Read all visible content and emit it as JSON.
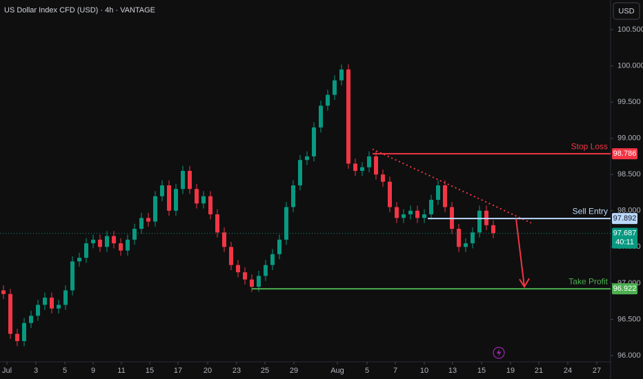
{
  "chart_data": {
    "type": "candlestick",
    "title": "US Dollar Index CFD (USD) · 4h · VANTAGE",
    "currency_button": "USD",
    "up_color": "#089981",
    "down_color": "#f23645",
    "grid": false,
    "xlim": [
      -0.5,
      88
    ],
    "ylim": [
      95.92,
      100.87
    ],
    "yticks": [
      {
        "value": 96,
        "label": "96.000"
      },
      {
        "value": 96.5,
        "label": "96.500"
      },
      {
        "value": 97,
        "label": "97.000"
      },
      {
        "value": 97.5,
        "label": "97.500"
      },
      {
        "value": 98,
        "label": "98.000"
      },
      {
        "value": 98.5,
        "label": "98.500"
      },
      {
        "value": 99,
        "label": "99.000"
      },
      {
        "value": 99.5,
        "label": "99.500"
      },
      {
        "value": 100,
        "label": "100.000"
      },
      {
        "value": 100.5,
        "label": "100.500"
      }
    ],
    "xticks": [
      {
        "value": 0.5,
        "label": "Jul"
      },
      {
        "value": 4.7,
        "label": "3"
      },
      {
        "value": 8.9,
        "label": "5"
      },
      {
        "value": 13,
        "label": "9"
      },
      {
        "value": 17.1,
        "label": "11"
      },
      {
        "value": 21.2,
        "label": "15"
      },
      {
        "value": 25.3,
        "label": "17"
      },
      {
        "value": 29.6,
        "label": "20"
      },
      {
        "value": 33.8,
        "label": "23"
      },
      {
        "value": 37.9,
        "label": "25"
      },
      {
        "value": 42.1,
        "label": "29"
      },
      {
        "value": 48.4,
        "label": "Aug"
      },
      {
        "value": 52.7,
        "label": "5"
      },
      {
        "value": 56.8,
        "label": "7"
      },
      {
        "value": 61,
        "label": "10"
      },
      {
        "value": 65.1,
        "label": "13"
      },
      {
        "value": 69.3,
        "label": "15"
      },
      {
        "value": 73.5,
        "label": "19"
      },
      {
        "value": 77.6,
        "label": "21"
      },
      {
        "value": 81.8,
        "label": "24"
      },
      {
        "value": 86,
        "label": "27"
      }
    ],
    "series": [
      {
        "name": "US Dollar Index CFD",
        "x": [
          0,
          1,
          2,
          3,
          4,
          5,
          6,
          7,
          8,
          9,
          10,
          11,
          12,
          13,
          14,
          15,
          16,
          17,
          18,
          19,
          20,
          21,
          22,
          23,
          24,
          25,
          26,
          27,
          28,
          29,
          30,
          31,
          32,
          33,
          34,
          35,
          36,
          37,
          38,
          39,
          40,
          41,
          42,
          43,
          44,
          45,
          46,
          47,
          48,
          49,
          50,
          51,
          52,
          53,
          54,
          55,
          56,
          57,
          58,
          59,
          60,
          61,
          62,
          63,
          64,
          65,
          66,
          67,
          68,
          69,
          70,
          71
        ],
        "open": [
          96.9,
          96.85,
          96.3,
          96.2,
          96.45,
          96.55,
          96.7,
          96.8,
          96.65,
          96.7,
          96.9,
          97.3,
          97.35,
          97.55,
          97.6,
          97.5,
          97.65,
          97.55,
          97.45,
          97.6,
          97.75,
          97.9,
          97.85,
          98.2,
          98.35,
          98.0,
          98.3,
          98.55,
          98.3,
          98.1,
          98.2,
          97.95,
          97.7,
          97.5,
          97.25,
          97.15,
          97.05,
          96.95,
          97.1,
          97.25,
          97.4,
          97.6,
          98.05,
          98.35,
          98.7,
          98.75,
          99.15,
          99.45,
          99.6,
          99.8,
          99.95,
          98.65,
          98.55,
          98.6,
          98.75,
          98.5,
          98.4,
          98.05,
          97.9,
          97.95,
          98.0,
          97.9,
          97.95,
          98.15,
          98.35,
          98.05,
          97.75,
          97.5,
          97.55,
          97.7,
          98.0,
          97.8
        ],
        "high": [
          96.97,
          96.92,
          96.37,
          96.52,
          96.62,
          96.77,
          96.87,
          96.87,
          96.77,
          96.97,
          97.37,
          97.42,
          97.62,
          97.67,
          97.67,
          97.72,
          97.72,
          97.62,
          97.67,
          97.82,
          97.97,
          97.97,
          98.27,
          98.42,
          98.42,
          98.37,
          98.62,
          98.62,
          98.37,
          98.27,
          98.27,
          98.02,
          97.77,
          97.57,
          97.32,
          97.22,
          97.12,
          97.17,
          97.32,
          97.47,
          97.67,
          98.12,
          98.42,
          98.77,
          98.82,
          99.22,
          99.52,
          99.67,
          99.87,
          100.02,
          100.02,
          98.72,
          98.67,
          98.82,
          98.82,
          98.57,
          98.47,
          98.12,
          98.02,
          98.07,
          98.07,
          98.02,
          98.22,
          98.42,
          98.42,
          98.12,
          97.82,
          97.62,
          97.77,
          98.07,
          98.07,
          97.87
        ],
        "low": [
          96.78,
          96.23,
          96.13,
          96.13,
          96.38,
          96.48,
          96.63,
          96.58,
          96.58,
          96.63,
          96.83,
          97.23,
          97.28,
          97.48,
          97.43,
          97.43,
          97.48,
          97.38,
          97.38,
          97.53,
          97.68,
          97.78,
          97.78,
          98.13,
          97.93,
          97.93,
          98.23,
          98.23,
          98.03,
          98.03,
          97.88,
          97.63,
          97.43,
          97.18,
          97.08,
          96.98,
          96.88,
          96.88,
          97.03,
          97.18,
          97.33,
          97.53,
          97.98,
          98.28,
          98.63,
          98.68,
          99.08,
          99.38,
          99.53,
          99.73,
          98.58,
          98.48,
          98.48,
          98.53,
          98.43,
          98.33,
          97.98,
          97.83,
          97.83,
          97.88,
          97.83,
          97.83,
          97.88,
          98.08,
          97.98,
          97.68,
          97.43,
          97.43,
          97.48,
          97.63,
          97.73,
          97.62
        ],
        "close": [
          96.85,
          96.3,
          96.2,
          96.45,
          96.55,
          96.7,
          96.8,
          96.65,
          96.7,
          96.9,
          97.3,
          97.35,
          97.55,
          97.6,
          97.5,
          97.65,
          97.55,
          97.45,
          97.6,
          97.75,
          97.9,
          97.85,
          98.2,
          98.35,
          98.0,
          98.3,
          98.55,
          98.3,
          98.1,
          98.2,
          97.95,
          97.7,
          97.5,
          97.25,
          97.15,
          97.05,
          96.95,
          97.1,
          97.25,
          97.4,
          97.6,
          98.05,
          98.35,
          98.7,
          98.75,
          99.15,
          99.45,
          99.6,
          99.8,
          99.95,
          98.65,
          98.55,
          98.6,
          98.75,
          98.5,
          98.4,
          98.05,
          97.9,
          97.95,
          98.0,
          97.9,
          97.95,
          98.15,
          98.35,
          98.05,
          97.75,
          97.5,
          97.55,
          97.7,
          98.0,
          97.8,
          97.69
        ]
      }
    ],
    "levels": [
      {
        "label": "Stop Loss",
        "value": 98.786,
        "value_label": "98.786",
        "color": "#f23645",
        "from": 53.5
      },
      {
        "label": "Sell Entry",
        "value": 97.892,
        "value_label": "97.892",
        "color": "#bbd9fb",
        "from": 61.5
      },
      {
        "label": "Take Profit",
        "value": 96.922,
        "value_label": "96.922",
        "color": "#4caf50",
        "from": 36
      }
    ],
    "last_price": {
      "value": 97.687,
      "value_label": "97.687",
      "countdown": "40:11",
      "color": "#089981"
    },
    "trendline": {
      "x": [
        53.5,
        76.5
      ],
      "y": [
        98.85,
        97.83
      ],
      "color": "#f23645"
    },
    "arrow": {
      "x": [
        74.3,
        75.5
      ],
      "y": [
        97.89,
        96.95
      ],
      "color": "#f23645"
    }
  }
}
